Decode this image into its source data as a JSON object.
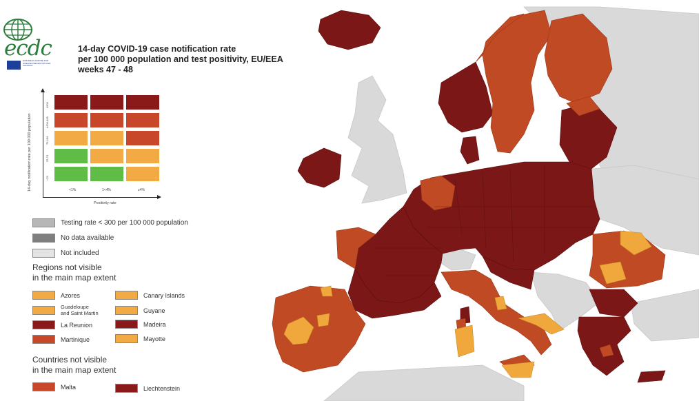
{
  "logo": {
    "wordmark": "ecdc",
    "subtitle": "EUROPEAN CENTRE FOR DISEASE PREVENTION AND CONTROL",
    "brand_green": "#2a7d3a",
    "brand_blue": "#1d3f9a"
  },
  "title": {
    "line1": "14-day COVID-19 case notification rate",
    "line2": "per 100 000 population and test positivity, EU/EEA",
    "line3": "weeks 47 - 48"
  },
  "matrix": {
    "y_axis_label": "14-day notification rate per 100 000 population",
    "x_axis_label": "Positivity rate",
    "x_ticks": [
      "<1%",
      "1<4%",
      "≥4%"
    ],
    "y_ticks": [
      "≥500",
      "≥200-499",
      "75-199",
      "25-74",
      "<25"
    ],
    "colors": [
      [
        "#8a1a1a",
        "#8a1a1a",
        "#8a1a1a"
      ],
      [
        "#c8462a",
        "#c8462a",
        "#c8462a"
      ],
      [
        "#f2ab44",
        "#f2ab44",
        "#c8462a"
      ],
      [
        "#5ebc47",
        "#f2ab44",
        "#f2ab44"
      ],
      [
        "#5ebc47",
        "#5ebc47",
        "#f2ab44"
      ]
    ]
  },
  "legend": {
    "grey_items": [
      {
        "label": "Testing rate < 300 per 100 000 population",
        "color": "#b7b7b7"
      },
      {
        "label": "No data available",
        "color": "#7f7f7f"
      },
      {
        "label": "Not included",
        "color": "#e3e3e3"
      }
    ],
    "regions_heading_1": "Regions not visible",
    "regions_heading_2": "in the main map extent",
    "regions": [
      {
        "label": "Azores",
        "color": "#f2ab44"
      },
      {
        "label": "Canary Islands",
        "color": "#f2ab44"
      },
      {
        "label": "Guadeloupe and Saint Martin",
        "label_1": "Guadeloupe",
        "label_2": "and Saint Martin",
        "color": "#f2ab44"
      },
      {
        "label": "Guyane",
        "color": "#f2ab44"
      },
      {
        "label": "La Reunion",
        "color": "#8a1a1a"
      },
      {
        "label": "Madeira",
        "color": "#8a1a1a"
      },
      {
        "label": "Martinique",
        "color": "#c8462a"
      },
      {
        "label": "Mayotte",
        "color": "#f2ab44"
      }
    ],
    "countries_heading_1": "Countries not visible",
    "countries_heading_2": "in the main map extent",
    "countries": [
      {
        "label": "Malta",
        "color": "#c8462a"
      },
      {
        "label": "Liechtenstein",
        "color": "#8a1a1a"
      }
    ]
  },
  "map_colors": {
    "dark_red": "#7b1716",
    "red": "#c04a24",
    "orange": "#f0a83c",
    "not_included": "#d9d9d9",
    "sea": "#ffffff"
  }
}
